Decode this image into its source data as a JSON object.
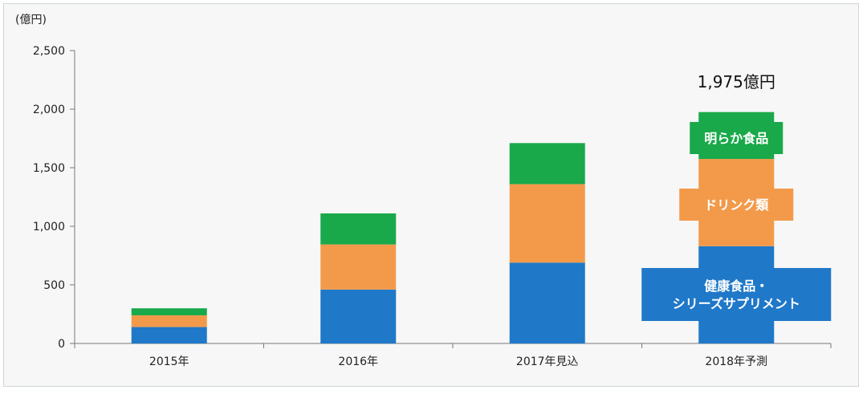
{
  "chart_data": {
    "type": "bar",
    "stacked": true,
    "unit_label": "(億円)",
    "categories": [
      "2015年",
      "2016年",
      "2017年見込",
      "2018年予測"
    ],
    "ylim": [
      0,
      2500
    ],
    "yticks": [
      "0",
      "500",
      "1,000",
      "1,500",
      "2,000",
      "2,500"
    ],
    "grid": false,
    "series": [
      {
        "name": "健康食品・\nシリーズサプリメント",
        "color": "#1f78c8",
        "values": [
          140,
          460,
          690,
          830
        ]
      },
      {
        "name": "ドリンク類",
        "color": "#f29a4a",
        "values": [
          100,
          385,
          670,
          745
        ]
      },
      {
        "name": "明らか食品",
        "color": "#19a94a",
        "values": [
          60,
          265,
          350,
          400
        ]
      }
    ],
    "annotations": [
      {
        "category": "2018年予測",
        "text": "1,975億円"
      }
    ]
  }
}
